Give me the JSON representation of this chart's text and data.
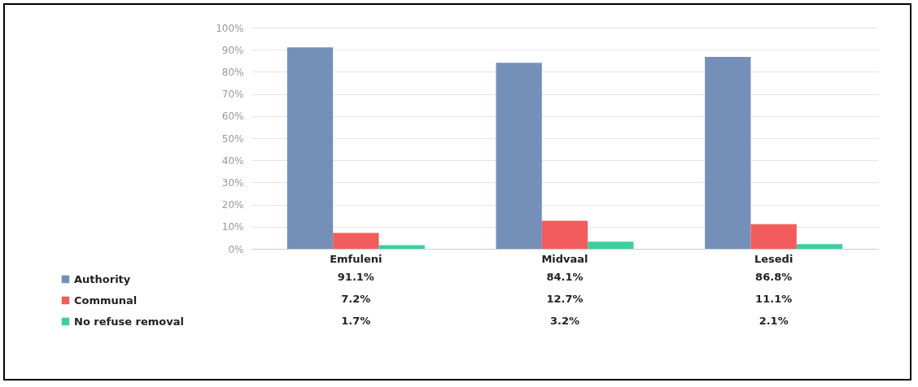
{
  "chart_data": {
    "type": "bar",
    "categories": [
      "Emfuleni",
      "Midvaal",
      "Lesedi"
    ],
    "series": [
      {
        "name": "Authority",
        "color": "#7590b8",
        "values": [
          91.1,
          84.1,
          86.8
        ],
        "value_labels": [
          "91.1%",
          "84.1%",
          "86.8%"
        ]
      },
      {
        "name": "Communal",
        "color": "#f25c5c",
        "values": [
          7.2,
          12.7,
          11.1
        ],
        "value_labels": [
          "7.2%",
          "12.7%",
          "11.1%"
        ]
      },
      {
        "name": "No refuse removal",
        "color": "#3ecf9f",
        "values": [
          1.7,
          3.2,
          2.1
        ],
        "value_labels": [
          "1.7%",
          "3.2%",
          "2.1%"
        ]
      }
    ],
    "ylim": [
      0,
      100
    ],
    "yticks": [
      {
        "value": 0,
        "label": "0%"
      },
      {
        "value": 10,
        "label": "10%"
      },
      {
        "value": 20,
        "label": "20%"
      },
      {
        "value": 30,
        "label": "30%"
      },
      {
        "value": 40,
        "label": "40%"
      },
      {
        "value": 50,
        "label": "50%"
      },
      {
        "value": 60,
        "label": "60%"
      },
      {
        "value": 70,
        "label": "70%"
      },
      {
        "value": 80,
        "label": "80%"
      },
      {
        "value": 90,
        "label": "90%"
      },
      {
        "value": 100,
        "label": "100%"
      }
    ],
    "grid": "y",
    "legend": "bottom left"
  }
}
